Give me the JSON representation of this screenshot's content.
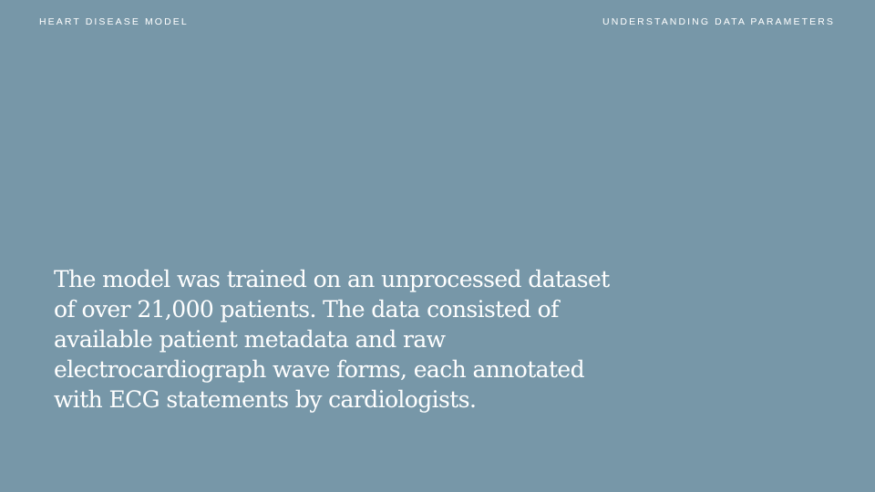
{
  "header": {
    "left_title": "HEART DISEASE MODEL",
    "right_title": "UNDERSTANDING DATA PARAMETERS"
  },
  "main": {
    "paragraph": "The model was trained on an unprocessed dataset of over 21,000 patients. The data consisted of available patient metadata and raw electrocardiograph wave forms, each annotated with ECG statements by cardiologists."
  },
  "colors": {
    "background": "#7797a8",
    "text": "#ffffff"
  }
}
